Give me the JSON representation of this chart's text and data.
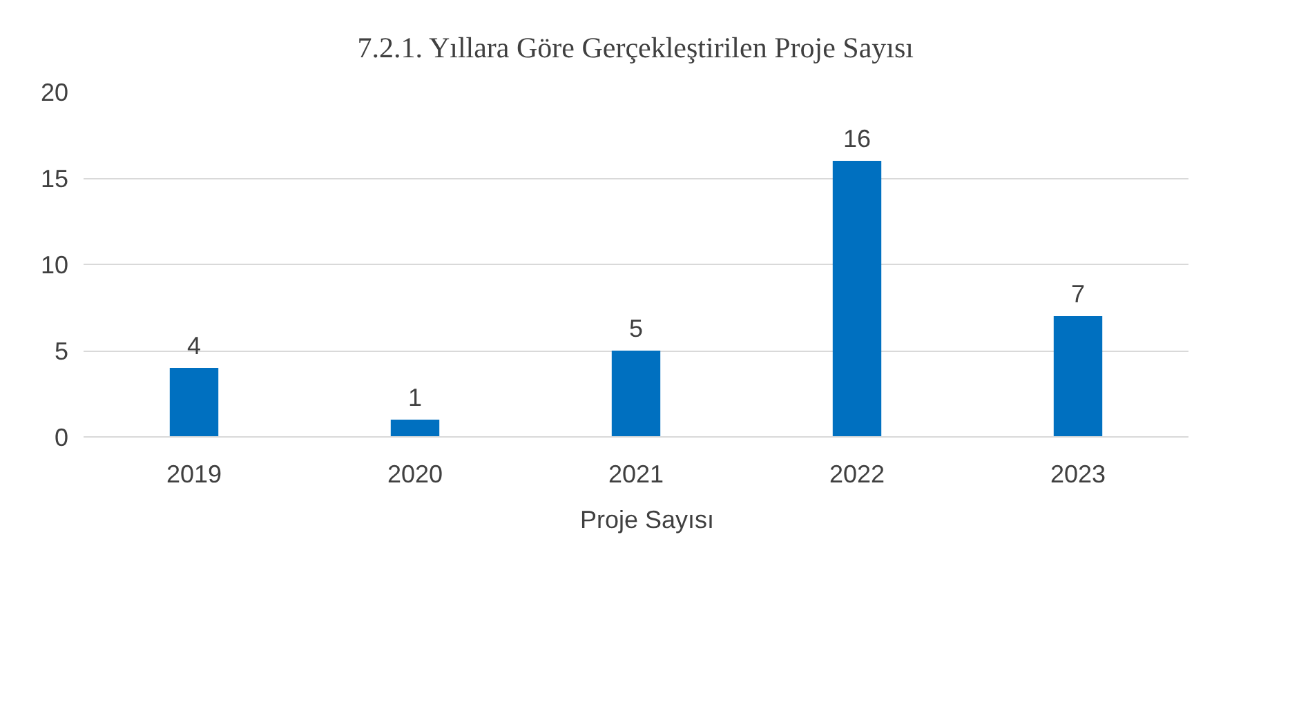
{
  "chart_data": {
    "type": "bar",
    "title": "7.2.1. Yıllara Göre Gerçekleştirilen Proje Sayısı",
    "categories": [
      "2019",
      "2020",
      "2021",
      "2022",
      "2023"
    ],
    "series": [
      {
        "name": "Proje Sayısı",
        "color": "#0070c0",
        "values": [
          4,
          1,
          5,
          16,
          7
        ]
      }
    ],
    "ylim": [
      0,
      20
    ],
    "yticks": [
      0,
      5,
      10,
      15,
      20
    ],
    "grid": "y",
    "legend": "bottom",
    "data_labels": true
  }
}
